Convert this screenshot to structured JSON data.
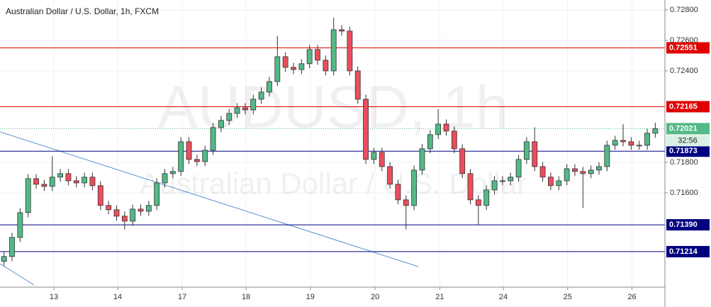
{
  "chart_data": {
    "type": "candlestick",
    "title": "Australian Dollar / U.S. Dollar, 1h, FXCM",
    "watermark": "AUDUSD, 1h",
    "watermark_subtitle": "Australian Dollar / U.S. Dollar",
    "up_color": "#53b987",
    "down_color": "#eb4d5c",
    "grid": true,
    "xlim": [
      0,
      82.7
    ],
    "xticks": [
      {
        "value": 6.7,
        "label": "13"
      },
      {
        "value": 14.64,
        "label": "14"
      },
      {
        "value": 22.66,
        "label": "17"
      },
      {
        "value": 30.6,
        "label": "18"
      },
      {
        "value": 38.6,
        "label": "19"
      },
      {
        "value": 46.65,
        "label": "20"
      },
      {
        "value": 54.7,
        "label": "21"
      },
      {
        "value": 62.6,
        "label": "24"
      },
      {
        "value": 70.6,
        "label": "25"
      },
      {
        "value": 78.6,
        "label": "26"
      }
    ],
    "ylim": [
      0.70981,
      0.72865
    ],
    "yticks": [
      {
        "value": 0.728,
        "label": "0.72800"
      },
      {
        "value": 0.726,
        "label": "0.72600"
      },
      {
        "value": 0.724,
        "label": "0.72400"
      },
      {
        "value": 0.718,
        "label": "0.71800"
      },
      {
        "value": 0.716,
        "label": "0.71600"
      }
    ],
    "levels": [
      {
        "value": 0.72551,
        "color": "#e00000"
      },
      {
        "value": 0.72165,
        "color": "#e00000"
      },
      {
        "value": 0.71873,
        "color": "#000080"
      },
      {
        "value": 0.7139,
        "label": "0.71390",
        "color": "#000080"
      },
      {
        "value": 0.71214,
        "color": "#000080"
      }
    ],
    "last_price": 0.72021,
    "countdown": "32:56",
    "open": [
      0.7115,
      0.71182,
      0.71307,
      0.7147,
      0.71693,
      0.71656,
      0.71642,
      0.71703,
      0.71726,
      0.71679,
      0.71665,
      0.71703,
      0.71647,
      0.71517,
      0.71489,
      0.71447,
      0.71414,
      0.71493,
      0.71479,
      0.71517,
      0.71665,
      0.71726,
      0.7174,
      0.71935,
      0.71819,
      0.71805,
      0.71879,
      0.72028,
      0.72075,
      0.72121,
      0.72158,
      0.72144,
      0.72214,
      0.72261,
      0.7233,
      0.72493,
      0.72423,
      0.72409,
      0.72447,
      0.7254,
      0.7247,
      0.724,
      0.7267,
      0.72661,
      0.724,
      0.72214,
      0.71819,
      0.71865,
      0.71772,
      0.71656,
      0.71554,
      0.71517,
      0.71749,
      0.71889,
      0.71982,
      0.72051,
      0.72005,
      0.71889,
      0.71726,
      0.71554,
      0.71517,
      0.71619,
      0.71679,
      0.71679,
      0.71703,
      0.71819,
      0.71935,
      0.71772,
      0.71703,
      0.71647,
      0.71679,
      0.71758,
      0.7174,
      0.71726,
      0.71749,
      0.71772,
      0.71912,
      0.71944,
      0.71935,
      0.71912,
      0.71912,
      0.71991
    ],
    "high": [
      0.71212,
      0.71337,
      0.715,
      0.71723,
      0.71723,
      0.71686,
      0.7184,
      0.71756,
      0.71756,
      0.71709,
      0.71733,
      0.71733,
      0.71677,
      0.71547,
      0.71519,
      0.71477,
      0.71523,
      0.71523,
      0.71547,
      0.71695,
      0.71756,
      0.7177,
      0.71965,
      0.71965,
      0.71849,
      0.71909,
      0.72058,
      0.72105,
      0.72151,
      0.72188,
      0.72188,
      0.72244,
      0.72291,
      0.7236,
      0.7263,
      0.72523,
      0.72453,
      0.72477,
      0.7257,
      0.7257,
      0.725,
      0.7275,
      0.727,
      0.72691,
      0.7243,
      0.72244,
      0.71895,
      0.71895,
      0.71802,
      0.71686,
      0.71584,
      0.71779,
      0.71919,
      0.72012,
      0.7215,
      0.72081,
      0.72035,
      0.71919,
      0.71756,
      0.71584,
      0.71649,
      0.71709,
      0.71709,
      0.71733,
      0.71849,
      0.71965,
      0.7203,
      0.71802,
      0.71733,
      0.71709,
      0.71788,
      0.71788,
      0.7177,
      0.71779,
      0.71802,
      0.71942,
      0.71974,
      0.7205,
      0.71965,
      0.71942,
      0.72021,
      0.7206
    ],
    "low": [
      0.7112,
      0.71152,
      0.71277,
      0.7144,
      0.71626,
      0.71612,
      0.71612,
      0.71673,
      0.71649,
      0.71635,
      0.71635,
      0.71617,
      0.71487,
      0.71459,
      0.71417,
      0.7136,
      0.71384,
      0.71449,
      0.71449,
      0.71487,
      0.71635,
      0.71696,
      0.7171,
      0.71789,
      0.71775,
      0.71775,
      0.71849,
      0.71998,
      0.72045,
      0.72091,
      0.72114,
      0.72114,
      0.72184,
      0.72231,
      0.723,
      0.72393,
      0.72379,
      0.72379,
      0.72417,
      0.7244,
      0.7237,
      0.7237,
      0.72631,
      0.7237,
      0.72184,
      0.71789,
      0.71789,
      0.71742,
      0.71626,
      0.71524,
      0.7136,
      0.71487,
      0.71719,
      0.71859,
      0.71952,
      0.71975,
      0.71859,
      0.71696,
      0.71524,
      0.7139,
      0.71487,
      0.71589,
      0.71649,
      0.71649,
      0.71673,
      0.71789,
      0.71742,
      0.71673,
      0.71617,
      0.71617,
      0.71649,
      0.7171,
      0.715,
      0.71696,
      0.71719,
      0.71742,
      0.71882,
      0.71905,
      0.71882,
      0.71882,
      0.71882,
      0.71961
    ],
    "close": [
      0.71182,
      0.71307,
      0.7147,
      0.71693,
      0.71656,
      0.71642,
      0.71703,
      0.71726,
      0.71679,
      0.71665,
      0.71703,
      0.71647,
      0.71517,
      0.71489,
      0.71447,
      0.71414,
      0.71493,
      0.71479,
      0.71517,
      0.71665,
      0.71726,
      0.7174,
      0.71935,
      0.71819,
      0.71805,
      0.71879,
      0.72028,
      0.72075,
      0.72121,
      0.72158,
      0.72144,
      0.72214,
      0.72261,
      0.7233,
      0.72493,
      0.72423,
      0.72409,
      0.72447,
      0.7254,
      0.7247,
      0.724,
      0.7267,
      0.72661,
      0.724,
      0.72214,
      0.71819,
      0.71865,
      0.71772,
      0.71656,
      0.71554,
      0.71517,
      0.71749,
      0.71889,
      0.71982,
      0.72051,
      0.72005,
      0.71889,
      0.71726,
      0.71554,
      0.71517,
      0.71619,
      0.71679,
      0.71679,
      0.71703,
      0.71819,
      0.71935,
      0.71772,
      0.71703,
      0.71647,
      0.71679,
      0.71758,
      0.7174,
      0.71726,
      0.71749,
      0.71772,
      0.71912,
      0.71944,
      0.71935,
      0.71912,
      0.71912,
      0.71991,
      0.72021
    ]
  }
}
